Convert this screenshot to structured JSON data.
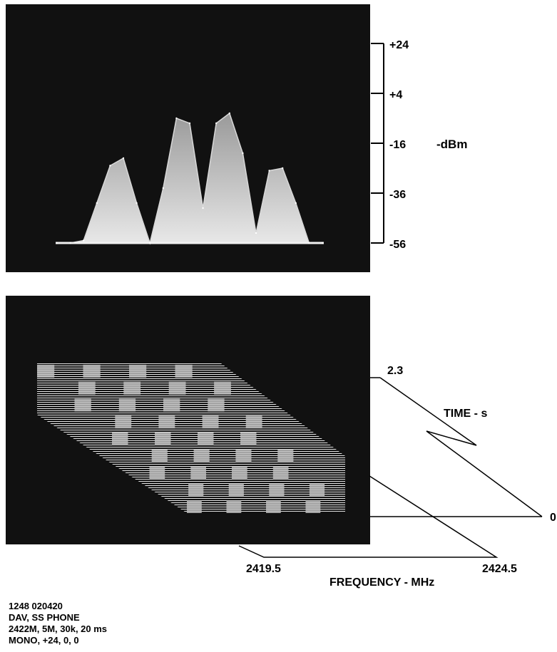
{
  "spectrum": {
    "type": "area",
    "panel_background": "#111111",
    "trace_color": "#d8d8d8",
    "y_unit_label": "-dBm",
    "y_ticks": [
      "+24",
      "+4",
      "-16",
      "-36",
      "-56"
    ],
    "ylim": [
      -56,
      24
    ],
    "grid": false
  },
  "waterfall": {
    "type": "waterfall",
    "panel_background": "#111111",
    "time_label": "TIME - s",
    "time_ticks": [
      "2.3",
      "0"
    ],
    "freq_label": "FREQUENCY - MHz",
    "freq_ticks": [
      "2419.5",
      "2424.5"
    ]
  },
  "chart_data": [
    {
      "type": "area",
      "title": "",
      "xlabel": "",
      "ylabel": "-dBm",
      "y_ticks": [
        "+24",
        "+4",
        "-16",
        "-36",
        "-56"
      ],
      "ylim": [
        -56,
        24
      ],
      "series": [
        {
          "values": [
            -56,
            -56,
            -55,
            -40,
            -25,
            -22,
            -40,
            -56,
            -34,
            -6,
            -8,
            -42,
            -8,
            -4,
            -20,
            -52,
            -27,
            -26,
            -40,
            -56,
            -56
          ]
        }
      ]
    },
    {
      "type": "heatmap",
      "title": "",
      "xlabel": "FREQUENCY - MHz",
      "ylabel": "TIME - s",
      "xlim": [
        2419.5,
        2424.5
      ],
      "ylim": [
        0,
        2.3
      ]
    }
  ],
  "notes": [
    "1248 020420",
    "DAV, SS PHONE",
    "2422M, 5M, 30k, 20 ms",
    "MONO, +24, 0, 0"
  ]
}
